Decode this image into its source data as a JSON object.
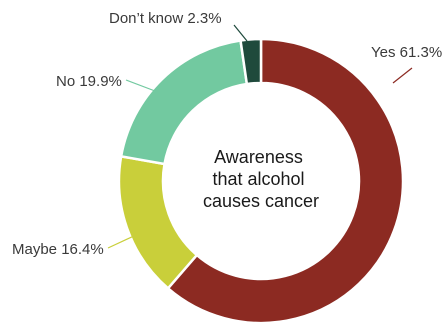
{
  "chart_data": {
    "type": "pie",
    "variant": "donut",
    "center_text": [
      "Awareness",
      "that alcohol",
      "causes cancer"
    ],
    "slices": [
      {
        "label": "Yes",
        "display": "Yes 61.3%",
        "value": 61.3,
        "color": "#8c2a22"
      },
      {
        "label": "Maybe",
        "display": "Maybe 16.4%",
        "value": 16.4,
        "color": "#c9cf3a"
      },
      {
        "label": "No",
        "display": "No 19.9%",
        "value": 19.9,
        "color": "#72c9a0"
      },
      {
        "label": "Don't know",
        "display": "Don’t know 2.3%",
        "value": 2.3,
        "color": "#1f4a3c"
      }
    ]
  }
}
